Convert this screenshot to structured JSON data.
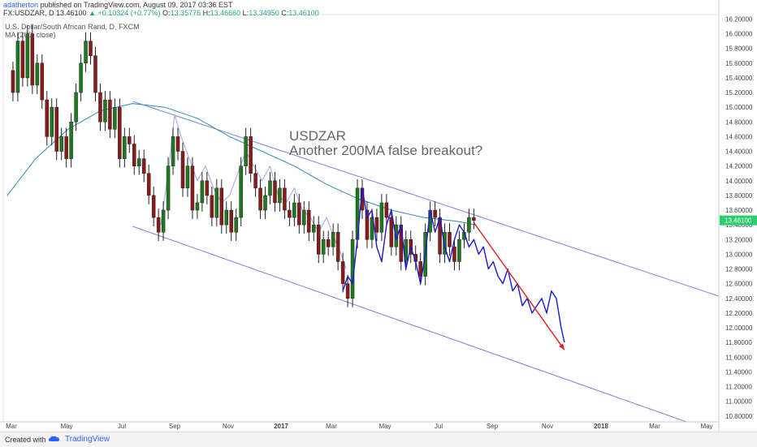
{
  "header": {
    "author": "adatherton",
    "published_text": "published on TradingView.com, August 09, 2017 03:36 EST",
    "symbol_line": "FX:USDZAR, D 13.46100",
    "change": "+0.10324 (+0.77%)",
    "open": "13.35776",
    "high": "13.46660",
    "low": "13.34950",
    "close": "13.46100",
    "series_title": "U.S. Dollar/South African Rand, D, FXCM",
    "indicator_title": "MA (200, close)"
  },
  "footer": {
    "created_with": "Created with",
    "brand": "TradingView"
  },
  "colors": {
    "candle_up": "#1f7a1f",
    "candle_down": "#8b1a1a",
    "ma_line": "#2f8fae",
    "channel": "#8080e0",
    "projection": "#1a1ad0",
    "ghost": "#b0b0ee",
    "arrow": "#e02020",
    "price_tag_bg": "#2ecc71"
  },
  "chart_data": {
    "type": "line",
    "annotation": {
      "line1": "USDZAR",
      "line2": "Another 200MA false breakout?"
    },
    "price_tag": "13.46100",
    "y_axis_ticks": [
      "16.20000",
      "16.00000",
      "15.80000",
      "15.60000",
      "15.40000",
      "15.20000",
      "15.00000",
      "14.80000",
      "14.60000",
      "14.40000",
      "14.20000",
      "14.00000",
      "13.80000",
      "13.60000",
      "13.40000",
      "13.20000",
      "13.00000",
      "12.80000",
      "12.60000",
      "12.40000",
      "12.20000",
      "12.00000",
      "11.80000",
      "11.60000",
      "11.40000",
      "11.20000",
      "11.00000",
      "10.80000"
    ],
    "ylim": [
      10.72,
      16.26
    ],
    "x_axis_labels": [
      "Mar",
      "May",
      "Jul",
      "Sep",
      "Nov",
      "2017",
      "Mar",
      "May",
      "Jul",
      "Sep",
      "Nov",
      "2018",
      "Mar",
      "May"
    ],
    "xlim": [
      0,
      885
    ],
    "price_series": {
      "name": "USDZAR",
      "x": [
        5,
        12,
        18,
        24,
        30,
        36,
        42,
        48,
        54,
        60,
        66,
        72,
        78,
        84,
        90,
        96,
        102,
        108,
        114,
        120,
        126,
        132,
        138,
        144,
        150,
        156,
        162,
        168,
        174,
        180,
        186,
        192,
        198,
        204,
        210,
        216,
        222,
        228,
        234,
        240,
        246,
        252,
        258,
        264,
        270,
        276,
        282,
        288,
        294,
        300,
        306,
        312,
        318,
        324,
        330,
        336,
        342,
        348,
        354,
        360,
        366,
        372,
        378,
        384,
        390,
        396,
        402,
        408,
        414,
        420,
        426,
        432,
        438,
        444,
        450,
        456,
        462,
        468,
        474,
        480,
        486,
        492,
        498,
        504,
        510,
        516,
        522,
        528,
        534,
        540,
        546,
        552,
        558,
        564,
        570,
        576,
        582
      ],
      "y": [
        15.5,
        15.2,
        15.9,
        15.4,
        16.0,
        15.3,
        15.6,
        15.1,
        14.6,
        15.0,
        14.4,
        14.6,
        14.3,
        14.8,
        15.2,
        15.6,
        15.9,
        15.7,
        15.2,
        14.8,
        15.1,
        14.7,
        15.0,
        14.3,
        14.6,
        14.5,
        14.2,
        14.3,
        14.1,
        13.8,
        13.5,
        13.3,
        13.6,
        14.2,
        14.6,
        14.4,
        13.9,
        14.2,
        13.6,
        13.7,
        14.0,
        13.8,
        13.5,
        13.9,
        13.4,
        13.6,
        13.3,
        13.5,
        14.2,
        14.6,
        14.1,
        13.9,
        13.6,
        13.8,
        14.0,
        13.7,
        13.9,
        13.6,
        13.5,
        13.7,
        13.4,
        13.6,
        13.3,
        13.4,
        13.0,
        13.2,
        13.1,
        13.3,
        12.9,
        12.6,
        12.4,
        13.2,
        13.9,
        13.6,
        13.2,
        13.5,
        13.3,
        13.7,
        13.5,
        13.1,
        13.4,
        12.9,
        13.2,
        13.0,
        12.9,
        12.7,
        13.3,
        13.6,
        13.5,
        13.0,
        13.3,
        13.1,
        12.9,
        13.2,
        13.3,
        13.5,
        13.461
      ]
    },
    "ma200_series": {
      "name": "MA (200, close)",
      "x": [
        5,
        40,
        80,
        120,
        160,
        200,
        240,
        280,
        320,
        360,
        400,
        440,
        480,
        520,
        560,
        585
      ],
      "y": [
        13.8,
        14.3,
        14.7,
        14.95,
        15.05,
        15.0,
        14.85,
        14.6,
        14.4,
        14.2,
        13.95,
        13.75,
        13.6,
        13.5,
        13.45,
        13.4
      ]
    },
    "projection_series": {
      "name": "",
      "x": [
        420,
        426,
        432,
        438,
        444,
        450,
        456,
        462,
        468,
        474,
        480,
        486,
        492,
        498,
        504,
        510,
        516,
        522,
        528,
        534,
        540,
        546,
        552,
        558,
        564,
        570,
        576,
        582,
        588,
        594,
        600,
        606,
        612,
        618,
        624,
        630,
        636,
        642,
        648,
        654,
        660,
        666,
        672,
        678,
        684,
        690,
        694
      ],
      "y": [
        12.5,
        12.7,
        12.6,
        13.2,
        13.9,
        13.5,
        13.6,
        13.1,
        12.9,
        13.4,
        13.6,
        13.2,
        13.4,
        12.8,
        13.1,
        12.9,
        12.6,
        13.0,
        13.6,
        13.3,
        13.5,
        13.1,
        12.9,
        13.2,
        13.4,
        13.3,
        13.1,
        13.2,
        13.0,
        13.1,
        12.8,
        12.9,
        12.7,
        12.6,
        12.8,
        12.5,
        12.6,
        12.3,
        12.4,
        12.2,
        12.3,
        12.4,
        12.2,
        12.5,
        12.4,
        12.0,
        11.8
      ]
    },
    "ghost_series": {
      "name": "",
      "x": [
        195,
        205,
        212,
        220,
        230,
        240,
        250,
        260,
        270,
        280,
        290,
        300,
        310,
        320,
        330,
        340,
        350,
        360,
        370,
        380,
        390,
        400,
        410,
        418,
        424
      ],
      "y": [
        13.4,
        14.2,
        14.9,
        14.6,
        14.3,
        14.0,
        14.2,
        13.9,
        13.7,
        13.8,
        14.1,
        14.4,
        14.2,
        14.0,
        14.2,
        13.8,
        13.7,
        13.9,
        13.6,
        13.5,
        13.3,
        13.5,
        13.2,
        13.0,
        12.8
      ]
    },
    "channel_upper": {
      "x": [
        160,
        885
      ],
      "y": [
        15.08,
        12.43
      ]
    },
    "channel_lower": {
      "x": [
        160,
        845
      ],
      "y": [
        13.38,
        10.72
      ]
    },
    "arrow": {
      "x": [
        582,
        694
      ],
      "y": [
        13.43,
        11.7
      ]
    },
    "grid": false,
    "legend": "top-left"
  }
}
